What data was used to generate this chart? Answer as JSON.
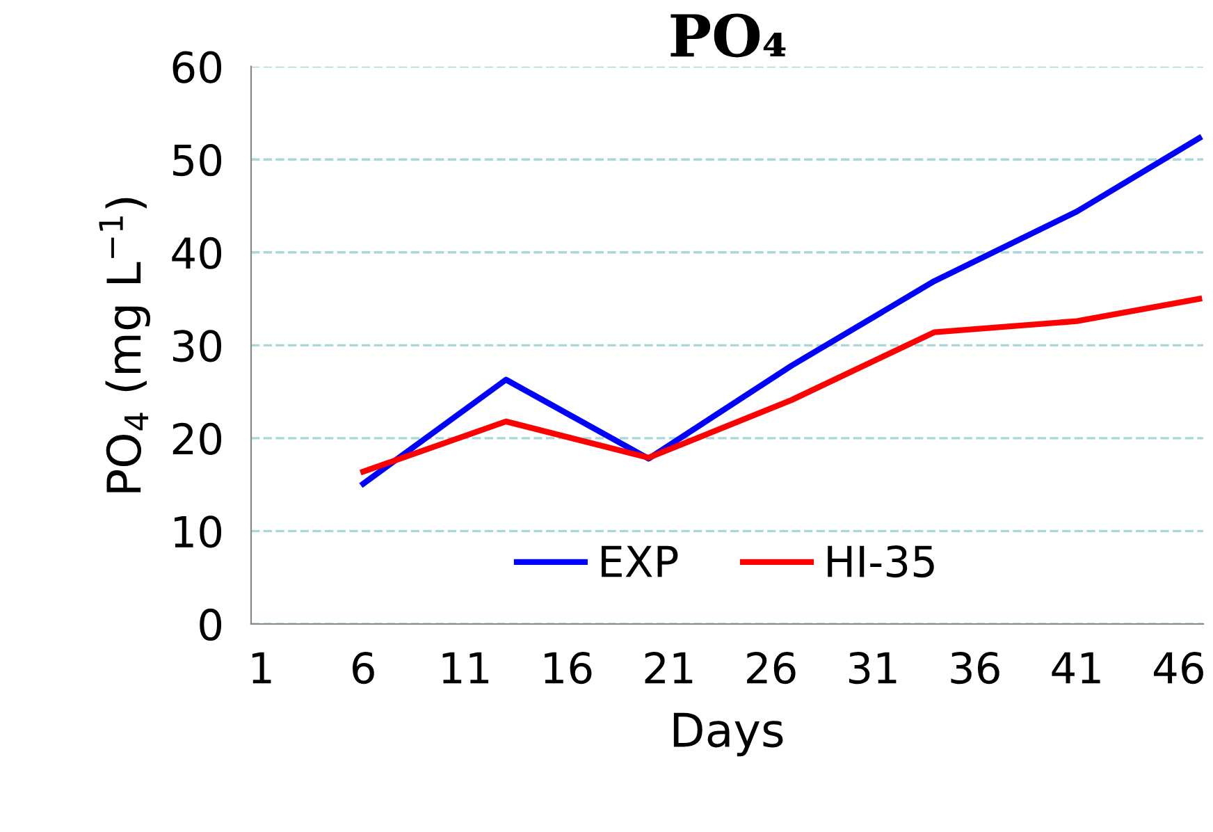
{
  "chart_data": {
    "type": "line",
    "title": "PO₄",
    "xlabel": "Days",
    "ylabel": "PO$_{4}$ (mg L$^{−1}$)",
    "x": [
      6,
      13,
      20,
      27,
      34,
      41,
      47
    ],
    "series": [
      {
        "name": "EXP",
        "color": "#0000ff",
        "values": [
          15.1,
          26.3,
          17.8,
          27.8,
          36.9,
          44.4,
          52.3
        ]
      },
      {
        "name": "HI-35",
        "color": "#ff0000",
        "values": [
          16.4,
          21.8,
          17.9,
          24.1,
          31.4,
          32.6,
          35.0
        ]
      }
    ],
    "xlim": [
      0.5,
      47.2
    ],
    "xticks": [
      1,
      6,
      11,
      16,
      21,
      26,
      31,
      36,
      41,
      46
    ],
    "ylim": [
      0,
      60
    ],
    "yticks": [
      0,
      10,
      20,
      30,
      40,
      50,
      60
    ],
    "grid": "y",
    "legend": "bottom",
    "marker": "none",
    "line_style": "solid"
  }
}
